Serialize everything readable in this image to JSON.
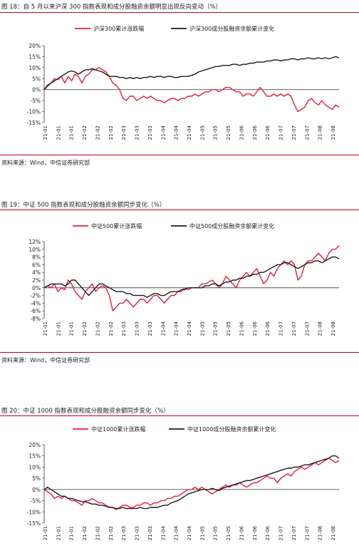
{
  "charts": [
    {
      "fig_title": "图 18：自 5 月以来沪深 300 指数表现和成分股融资余额明显出现反向变动（%）",
      "source": "资料来源：Wind，中信证券研究部",
      "chart_data": {
        "type": "line",
        "xlabel": "",
        "ylabel": "",
        "ylim": [
          -15,
          20
        ],
        "ytick_step": 5,
        "yticks_percent": true,
        "legend_placement": "top",
        "grid": false,
        "x_tick_labels": [
          "21-01",
          "21-01",
          "21-01",
          "21-02",
          "21-02",
          "21-02",
          "21-03",
          "21-03",
          "21-03",
          "21-04",
          "21-04",
          "21-04",
          "21-05",
          "21-05",
          "21-05",
          "21-06",
          "21-06",
          "21-06",
          "21-07",
          "21-07",
          "21-07",
          "21-08",
          "21-08"
        ],
        "series": [
          {
            "name": "沪深300累计涨跌幅",
            "color": "#e8203a",
            "values": [
              0,
              1.5,
              3,
              5,
              4.5,
              6,
              3,
              6,
              4,
              7,
              6,
              3,
              6,
              7,
              9,
              9,
              10,
              9,
              8,
              6,
              3,
              2,
              0,
              -4,
              -5,
              -3,
              -3,
              -5,
              -4,
              -3,
              -4,
              -3,
              -4,
              -5,
              -5,
              -6,
              -5,
              -4,
              -4,
              -5,
              -4,
              -4,
              -3,
              -3,
              -2,
              -3,
              -2,
              -1,
              -1,
              0,
              0,
              -1,
              0,
              1,
              1,
              0,
              -1,
              -1,
              -3,
              -2,
              -2,
              -3,
              -1,
              1,
              -1,
              -3,
              -3,
              -2,
              -3,
              -2,
              -3,
              -2,
              -3,
              -7,
              -10,
              -9,
              -8,
              -5,
              -4,
              -6,
              -7,
              -5,
              -7,
              -8,
              -9,
              -7,
              -8
            ]
          },
          {
            "name": "沪深300成分股融资余额累计变化",
            "color": "#1c1c1c",
            "values": [
              0,
              2,
              3,
              4,
              5,
              6,
              7,
              8,
              8.5,
              8,
              7,
              8,
              9,
              9,
              9.5,
              9,
              8.5,
              8,
              7,
              6,
              6,
              6,
              5.5,
              5.5,
              5,
              5.5,
              5,
              5.5,
              5,
              5.5,
              5.5,
              6,
              5.5,
              6,
              6,
              5.5,
              6,
              6,
              5.5,
              5.5,
              6,
              6,
              6,
              6.5,
              7,
              8,
              8.5,
              9,
              9.5,
              10,
              10.5,
              10.5,
              11,
              11,
              11,
              11.5,
              11.5,
              11,
              11.5,
              11.5,
              12,
              12,
              12.5,
              12.5,
              12.5,
              13,
              13,
              13.5,
              13.5,
              13,
              13.5,
              13.5,
              14,
              14,
              13.5,
              14,
              14,
              14.5,
              14,
              14,
              14.5,
              14,
              14.5,
              14,
              14.5,
              15,
              14.5
            ]
          }
        ]
      }
    },
    {
      "fig_title": "图 19：中证 500 指数表现和成分股融资余额同步变化（%）",
      "source": "资料来源：Wind，中信证券研究部",
      "chart_data": {
        "type": "line",
        "xlabel": "",
        "ylabel": "",
        "ylim": [
          -8,
          12
        ],
        "ytick_step": 2,
        "yticks_percent": true,
        "legend_placement": "top",
        "grid": false,
        "x_tick_labels": [
          "21-01",
          "21-01",
          "21-01",
          "21-02",
          "21-02",
          "21-02",
          "21-03",
          "21-03",
          "21-03",
          "21-04",
          "21-04",
          "21-04",
          "21-05",
          "21-05",
          "21-05",
          "21-06",
          "21-06",
          "21-06",
          "21-07",
          "21-07",
          "21-07",
          "21-08",
          "21-08"
        ],
        "series": [
          {
            "name": "中证500累计涨跌幅",
            "color": "#e8203a",
            "values": [
              0,
              0.5,
              0,
              1,
              -1,
              0,
              -0.5,
              2,
              1,
              -1,
              -2,
              -3,
              -1,
              0,
              1,
              -1,
              0,
              0.5,
              0,
              -2,
              -6,
              -5,
              -4,
              -4,
              -3,
              -4,
              -5,
              -4,
              -3,
              -3,
              -4,
              -3,
              -2,
              -2,
              -3,
              -4,
              -3,
              -2,
              -2,
              -1,
              -1,
              0,
              -0.5,
              0,
              0,
              0,
              1,
              1,
              1.5,
              2,
              1,
              0,
              1,
              3,
              2,
              1,
              0,
              2,
              3,
              4,
              3,
              4,
              5,
              3,
              1,
              2,
              4,
              3,
              5,
              6,
              7,
              6,
              7,
              6,
              2,
              3,
              6,
              7,
              7,
              8,
              9,
              8,
              7,
              9,
              10,
              10,
              11
            ]
          },
          {
            "name": "中证500成分股融资余额累计变化",
            "color": "#1c1c1c",
            "values": [
              0,
              0.5,
              1,
              1,
              1,
              1,
              0.5,
              1,
              2,
              2,
              1,
              0,
              -1,
              -2,
              -1,
              0,
              1,
              1,
              0.5,
              0,
              -0.5,
              -1,
              -1,
              -1,
              -1.5,
              -1.5,
              -2,
              -2,
              -2,
              -2,
              -2.5,
              -2,
              -1.5,
              -1.5,
              -2,
              -2,
              -1.5,
              -1,
              -1,
              -1,
              -0.5,
              -0.5,
              0,
              0,
              0,
              0,
              0,
              0.5,
              0.5,
              1,
              1,
              0.5,
              1,
              1.5,
              1.5,
              2,
              2,
              2.5,
              2.5,
              3,
              3,
              3.5,
              3.5,
              4,
              4,
              4.5,
              5,
              5.5,
              6,
              6,
              6.5,
              6.5,
              6,
              5.5,
              5,
              5.5,
              6,
              6.5,
              6.5,
              7,
              7,
              6.5,
              7,
              7.5,
              8,
              8,
              7.5
            ]
          }
        ]
      }
    },
    {
      "fig_title": "图 20：中证 1000 指数表现和成分股融资余额同步变化（%）",
      "source": "",
      "chart_data": {
        "type": "line",
        "xlabel": "",
        "ylabel": "",
        "ylim": [
          -15,
          20
        ],
        "ytick_step": 5,
        "yticks_percent": true,
        "legend_placement": "top",
        "grid": false,
        "x_tick_labels": [
          "21-01",
          "21-01",
          "21-01",
          "21-02",
          "21-02",
          "21-02",
          "21-03",
          "21-03",
          "21-03",
          "21-04",
          "21-04",
          "21-04",
          "21-05",
          "21-05",
          "21-05",
          "21-06",
          "21-06",
          "21-06",
          "21-07",
          "21-07",
          "21-07",
          "21-08",
          "21-08"
        ],
        "series": [
          {
            "name": "中证1000累计涨跌幅",
            "color": "#e8203a",
            "values": [
              0,
              -1,
              -2,
              -4,
              -3,
              -4,
              -3,
              -4,
              -5,
              -5,
              -6,
              -7,
              -5,
              -5,
              -4,
              -5,
              -6,
              -6,
              -7,
              -8,
              -8,
              -9,
              -8,
              -7,
              -7,
              -8,
              -8,
              -7,
              -7,
              -6,
              -6,
              -7,
              -6,
              -6,
              -5,
              -5,
              -4,
              -4,
              -3,
              -3,
              -2,
              -1,
              0,
              0,
              1,
              0,
              1,
              0,
              -1,
              -2,
              -1,
              0,
              1,
              2,
              1,
              2,
              2,
              3,
              2,
              1,
              2,
              3,
              3,
              4,
              5,
              6,
              5,
              5,
              3,
              5,
              6,
              7,
              6,
              8,
              9,
              10,
              9,
              10,
              11,
              12,
              11,
              12,
              13,
              14,
              13,
              12,
              13
            ]
          },
          {
            "name": "中证1000成分股融资余额累计变化",
            "color": "#1c1c1c",
            "values": [
              0,
              1,
              0,
              -1,
              -2,
              -3,
              -3,
              -4,
              -4,
              -4.5,
              -5,
              -5.5,
              -5.5,
              -6,
              -6.5,
              -6.5,
              -7,
              -7,
              -7.5,
              -8,
              -8,
              -8.5,
              -8.5,
              -8,
              -8.5,
              -8.5,
              -8.5,
              -8.5,
              -8,
              -8.5,
              -8.5,
              -8,
              -8,
              -8,
              -7.5,
              -7,
              -7,
              -6,
              -5.5,
              -5,
              -4,
              -3,
              -2,
              -1.5,
              -1,
              -0.5,
              0,
              0,
              0,
              0.5,
              0,
              -0.5,
              0.5,
              1,
              1.5,
              2,
              2.5,
              3,
              3.5,
              4,
              4,
              4.5,
              5,
              5.5,
              6,
              6.5,
              7,
              7.5,
              8,
              8.5,
              9,
              9.5,
              9.5,
              10,
              10,
              10.5,
              11,
              11,
              11.5,
              12,
              12.5,
              13,
              13.5,
              14,
              15,
              15,
              14
            ]
          }
        ]
      }
    }
  ]
}
